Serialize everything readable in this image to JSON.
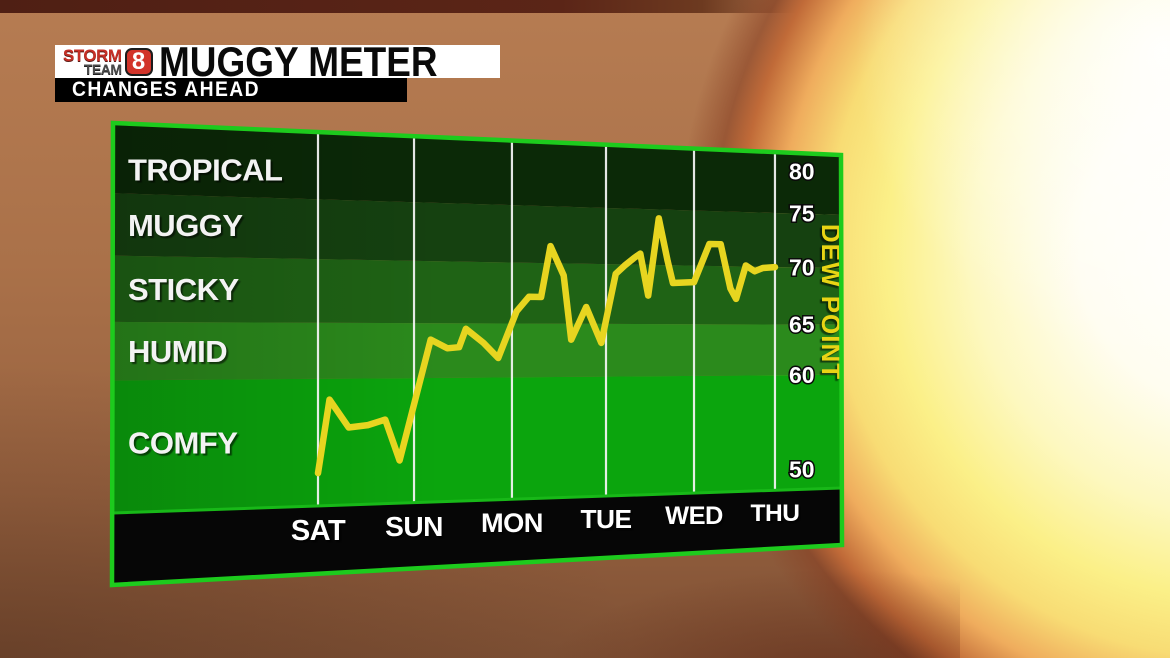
{
  "header": {
    "logo": {
      "line1": "STORM",
      "line2": "TEAM",
      "number": "8"
    },
    "title": "MUGGY METER",
    "subtitle": "CHANGES AHEAD"
  },
  "chart_data": {
    "type": "line",
    "title": "MUGGY METER",
    "subtitle": "CHANGES AHEAD",
    "categories": [
      "SAT",
      "SUN",
      "MON",
      "TUE",
      "WED",
      "THU"
    ],
    "x_unit": "days (0 = SAT gridline, 5 = THU gridline)",
    "ylabel": "DEW POINT",
    "yticks": [
      50,
      60,
      65,
      70,
      75,
      80
    ],
    "ylim": [
      48.6,
      82.5
    ],
    "grid": "vertical white lines at each day",
    "legend": "none",
    "bands": [
      {
        "label": "TROPICAL",
        "from": 75,
        "to": 82.5,
        "color": "#0b2907"
      },
      {
        "label": "MUGGY",
        "from": 70,
        "to": 75,
        "color": "#154110"
      },
      {
        "label": "STICKY",
        "from": 65,
        "to": 70,
        "color": "#1f6315"
      },
      {
        "label": "HUMID",
        "from": 60,
        "to": 65,
        "color": "#2b8a1c"
      },
      {
        "label": "COMFY",
        "from": 48.6,
        "to": 60,
        "color": "#0ba50d"
      }
    ],
    "series": [
      {
        "name": "dew_point_forecast",
        "color": "#e7d520",
        "points": [
          [
            0.0,
            51
          ],
          [
            0.12,
            58
          ],
          [
            0.32,
            55.3
          ],
          [
            0.52,
            55.5
          ],
          [
            0.7,
            56
          ],
          [
            0.85,
            52
          ],
          [
            1.17,
            63.5
          ],
          [
            1.34,
            62.7
          ],
          [
            1.46,
            62.8
          ],
          [
            1.53,
            64.5
          ],
          [
            1.71,
            63.2
          ],
          [
            1.86,
            61.8
          ],
          [
            2.05,
            66
          ],
          [
            2.18,
            67.2
          ],
          [
            2.31,
            67.2
          ],
          [
            2.41,
            71.5
          ],
          [
            2.55,
            69
          ],
          [
            2.63,
            63.5
          ],
          [
            2.79,
            66.4
          ],
          [
            2.95,
            63.2
          ],
          [
            3.11,
            69.2
          ],
          [
            3.21,
            69.9
          ],
          [
            3.32,
            70.6
          ],
          [
            3.39,
            71
          ],
          [
            3.48,
            67.4
          ],
          [
            3.6,
            74.2
          ],
          [
            3.7,
            70.4
          ],
          [
            3.76,
            68.5
          ],
          [
            4.0,
            68.6
          ],
          [
            4.19,
            72
          ],
          [
            4.33,
            72
          ],
          [
            4.45,
            68.1
          ],
          [
            4.52,
            67.2
          ],
          [
            4.64,
            70.1
          ],
          [
            4.75,
            69.6
          ],
          [
            4.85,
            69.9
          ],
          [
            5.0,
            70
          ]
        ]
      }
    ],
    "colors": {
      "border_green": "#1dcb1d",
      "boundary_green": "#18b818",
      "gridline": "#f5f5f5",
      "day_band": "#060606",
      "tick_text": "#ffffff",
      "band_text": "#f3f3f3",
      "ylabel_text": "#e9d414"
    }
  }
}
